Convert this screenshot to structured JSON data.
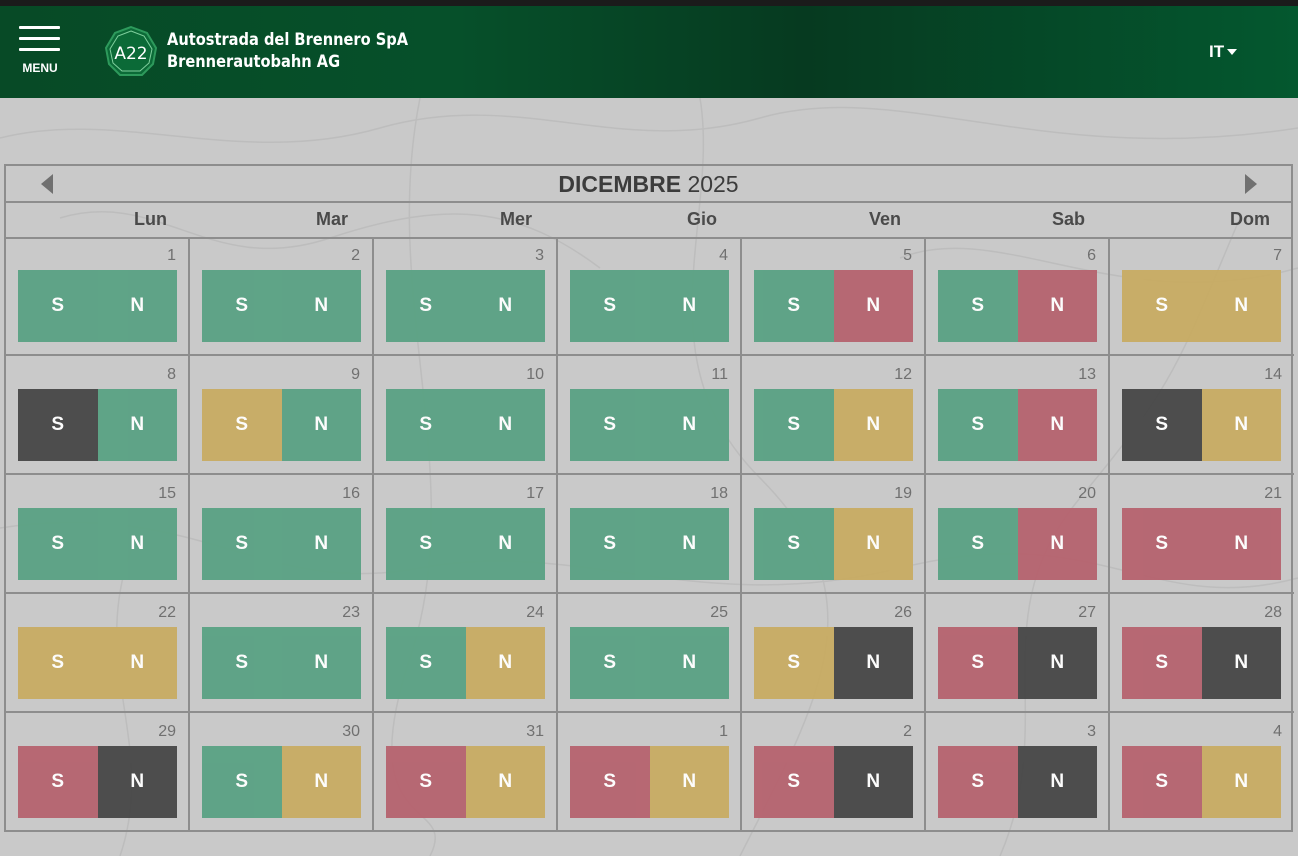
{
  "header": {
    "menu_label": "MENU",
    "logo_text": "A22",
    "brand_line1": "Autostrada del Brennero SpA",
    "brand_line2": "Brennerautobahn AG",
    "language": "IT"
  },
  "calendar": {
    "month": "DICEMBRE",
    "year": "2025",
    "weekdays": [
      "Lun",
      "Mar",
      "Mer",
      "Gio",
      "Ven",
      "Sab",
      "Dom"
    ],
    "direction_labels": {
      "south": "S",
      "north": "N"
    },
    "status_colors": {
      "green": "#5aa284",
      "yellow": "#c8ac63",
      "red": "#b6636f",
      "black": "#474747"
    },
    "days": [
      {
        "day": "1",
        "s": "green",
        "n": "green"
      },
      {
        "day": "2",
        "s": "green",
        "n": "green"
      },
      {
        "day": "3",
        "s": "green",
        "n": "green"
      },
      {
        "day": "4",
        "s": "green",
        "n": "green"
      },
      {
        "day": "5",
        "s": "green",
        "n": "red"
      },
      {
        "day": "6",
        "s": "green",
        "n": "red"
      },
      {
        "day": "7",
        "s": "yellow",
        "n": "yellow"
      },
      {
        "day": "8",
        "s": "black",
        "n": "green"
      },
      {
        "day": "9",
        "s": "yellow",
        "n": "green"
      },
      {
        "day": "10",
        "s": "green",
        "n": "green"
      },
      {
        "day": "11",
        "s": "green",
        "n": "green"
      },
      {
        "day": "12",
        "s": "green",
        "n": "yellow"
      },
      {
        "day": "13",
        "s": "green",
        "n": "red"
      },
      {
        "day": "14",
        "s": "black",
        "n": "yellow"
      },
      {
        "day": "15",
        "s": "green",
        "n": "green"
      },
      {
        "day": "16",
        "s": "green",
        "n": "green"
      },
      {
        "day": "17",
        "s": "green",
        "n": "green"
      },
      {
        "day": "18",
        "s": "green",
        "n": "green"
      },
      {
        "day": "19",
        "s": "green",
        "n": "yellow"
      },
      {
        "day": "20",
        "s": "green",
        "n": "red"
      },
      {
        "day": "21",
        "s": "red",
        "n": "red"
      },
      {
        "day": "22",
        "s": "yellow",
        "n": "yellow"
      },
      {
        "day": "23",
        "s": "green",
        "n": "green"
      },
      {
        "day": "24",
        "s": "green",
        "n": "yellow"
      },
      {
        "day": "25",
        "s": "green",
        "n": "green"
      },
      {
        "day": "26",
        "s": "yellow",
        "n": "black"
      },
      {
        "day": "27",
        "s": "red",
        "n": "black"
      },
      {
        "day": "28",
        "s": "red",
        "n": "black"
      },
      {
        "day": "29",
        "s": "red",
        "n": "black"
      },
      {
        "day": "30",
        "s": "green",
        "n": "yellow"
      },
      {
        "day": "31",
        "s": "red",
        "n": "yellow"
      },
      {
        "day": "1",
        "s": "red",
        "n": "yellow"
      },
      {
        "day": "2",
        "s": "red",
        "n": "black"
      },
      {
        "day": "3",
        "s": "red",
        "n": "black"
      },
      {
        "day": "4",
        "s": "red",
        "n": "yellow"
      }
    ]
  }
}
